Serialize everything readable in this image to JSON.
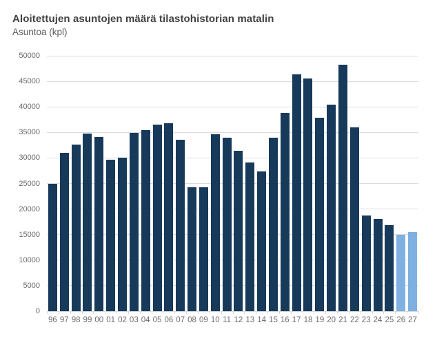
{
  "header": {
    "title": "Aloitettujen asuntojen määrä tilastohistorian matalin",
    "subtitle": "Asuntoa (kpl)"
  },
  "colors": {
    "bar_actual": "#17395a",
    "bar_forecast": "#7fb0e2",
    "gridline": "#dcdcdc",
    "axis_label": "#6b6b6b",
    "title": "#3f3f3f",
    "subtitle": "#5c5c5c",
    "background": "#ffffff"
  },
  "chart_data": {
    "type": "bar",
    "title": "Aloitettujen asuntojen määrä tilastohistorian matalin",
    "subtitle": "Asuntoa (kpl)",
    "xlabel": "",
    "ylabel": "Asuntoa (kpl)",
    "categories": [
      "96",
      "97",
      "98",
      "99",
      "00",
      "01",
      "02",
      "03",
      "04",
      "05",
      "06",
      "07",
      "08",
      "09",
      "10",
      "11",
      "12",
      "13",
      "14",
      "15",
      "16",
      "17",
      "18",
      "19",
      "20",
      "21",
      "22",
      "23",
      "24",
      "25",
      "26",
      "27"
    ],
    "values": [
      25000,
      31000,
      32600,
      34800,
      34100,
      29600,
      30000,
      34900,
      35500,
      36500,
      36800,
      33500,
      24200,
      24300,
      34700,
      33900,
      31400,
      29100,
      27400,
      34000,
      38800,
      46400,
      45600,
      37900,
      40400,
      48300,
      36000,
      18800,
      18100,
      16800,
      15000,
      15500
    ],
    "forecast_categories": [
      "26",
      "27"
    ],
    "ylim": [
      0,
      50000
    ],
    "ytick_step": 5000,
    "yticks": [
      0,
      5000,
      10000,
      15000,
      20000,
      25000,
      30000,
      35000,
      40000,
      45000,
      50000
    ],
    "grid": true,
    "legend": false
  }
}
